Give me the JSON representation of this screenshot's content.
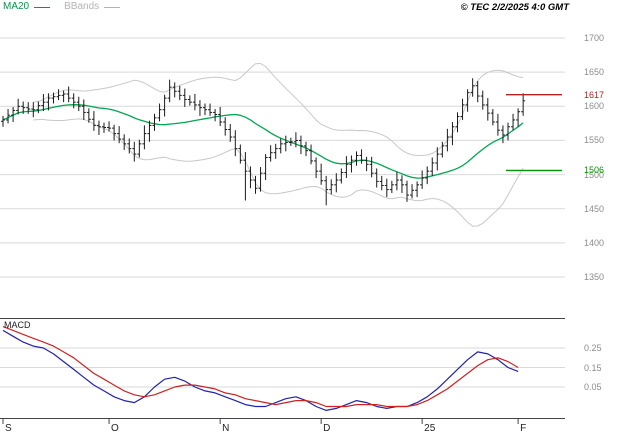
{
  "legend": {
    "ma20": {
      "label": "MA20",
      "color": "#009944"
    },
    "bbands": {
      "label": "BBands",
      "color": "#b3b3b3"
    }
  },
  "header": {
    "copyright": "© TEC 2/2/2025 4:0 GMT"
  },
  "macd_panel_label": "MACD",
  "colors": {
    "grid": "#d9d9d9",
    "separator": "#444444",
    "axis_text": "#8c8c8c",
    "bar": "#1a1a1a",
    "ma20": "#00a651",
    "bbands": "#c8c8c8",
    "macd_line": "#2222aa",
    "signal_line": "#cc2222",
    "resistance": "#b22222",
    "support": "#009900"
  },
  "chart_data": [
    {
      "type": "ohlc",
      "name": "price",
      "title": "",
      "ylabel": "",
      "ylim": [
        1340,
        1710
      ],
      "grid": true,
      "y_ticks": [
        1700,
        1650,
        1600,
        1550,
        1500,
        1450,
        1400,
        1350
      ],
      "x_ticks": [
        {
          "label": "S",
          "bar": 0
        },
        {
          "label": "O",
          "bar": 21
        },
        {
          "label": "N",
          "bar": 43
        },
        {
          "label": "D",
          "bar": 63
        },
        {
          "label": "25",
          "bar": 83
        },
        {
          "label": "F",
          "bar": 102
        }
      ],
      "levels": [
        {
          "kind": "resistance",
          "label": "1617",
          "value": 1617,
          "color": "#b22222"
        },
        {
          "kind": "support",
          "label": "1506",
          "value": 1506,
          "color": "#009900"
        }
      ],
      "overlays": [
        {
          "name": "MA20",
          "type": "sma",
          "period": 20,
          "color": "#00a651"
        },
        {
          "name": "BBands",
          "type": "bollinger",
          "period": 20,
          "stddev": 2,
          "color": "#c8c8c8"
        }
      ],
      "open": [
        1578,
        1580,
        1587,
        1594,
        1600,
        1598,
        1596,
        1595,
        1601,
        1606,
        1612,
        1614,
        1616,
        1618,
        1612,
        1606,
        1600,
        1591,
        1581,
        1572,
        1570,
        1569,
        1568,
        1560,
        1552,
        1545,
        1538,
        1530,
        1545,
        1560,
        1572,
        1583,
        1595,
        1612,
        1628,
        1622,
        1616,
        1610,
        1606,
        1602,
        1598,
        1595,
        1591,
        1588,
        1577,
        1566,
        1555,
        1538,
        1521,
        1505,
        1492,
        1480,
        1502,
        1525,
        1532,
        1538,
        1545,
        1547,
        1548,
        1550,
        1542,
        1535,
        1520,
        1505,
        1491,
        1478,
        1485,
        1492,
        1503,
        1515,
        1521,
        1528,
        1521,
        1515,
        1502,
        1490,
        1484,
        1478,
        1485,
        1492,
        1485,
        1470,
        1477,
        1485,
        1495,
        1505,
        1517,
        1530,
        1542,
        1555,
        1570,
        1585,
        1602,
        1620,
        1630,
        1615,
        1602,
        1590,
        1577,
        1565,
        1558,
        1570,
        1580,
        1592
      ],
      "high": [
        1586,
        1596,
        1599,
        1611,
        1607,
        1606,
        1606,
        1607,
        1618,
        1619,
        1620,
        1625,
        1623,
        1629,
        1619,
        1614,
        1610,
        1597,
        1593,
        1579,
        1576,
        1578,
        1573,
        1571,
        1559,
        1553,
        1548,
        1551,
        1572,
        1579,
        1589,
        1604,
        1617,
        1639,
        1635,
        1630,
        1626,
        1616,
        1618,
        1609,
        1604,
        1604,
        1596,
        1599,
        1584,
        1574,
        1565,
        1544,
        1533,
        1512,
        1498,
        1511,
        1530,
        1543,
        1545,
        1553,
        1557,
        1554,
        1562,
        1557,
        1548,
        1544,
        1525,
        1516,
        1498,
        1493,
        1502,
        1509,
        1527,
        1528,
        1534,
        1537,
        1526,
        1526,
        1509,
        1498,
        1494,
        1491,
        1504,
        1499,
        1491,
        1486,
        1490,
        1506,
        1512,
        1525,
        1540,
        1548,
        1567,
        1577,
        1591,
        1611,
        1625,
        1641,
        1637,
        1623,
        1612,
        1596,
        1589,
        1572,
        1576,
        1589,
        1597,
        1619
      ],
      "low": [
        1570,
        1575,
        1577,
        1588,
        1589,
        1589,
        1584,
        1590,
        1593,
        1594,
        1604,
        1609,
        1606,
        1606,
        1597,
        1593,
        1580,
        1576,
        1564,
        1558,
        1561,
        1563,
        1550,
        1546,
        1536,
        1531,
        1519,
        1525,
        1537,
        1548,
        1564,
        1578,
        1585,
        1606,
        1613,
        1609,
        1599,
        1601,
        1594,
        1586,
        1587,
        1586,
        1578,
        1571,
        1557,
        1548,
        1527,
        1516,
        1462,
        1480,
        1472,
        1475,
        1492,
        1519,
        1523,
        1531,
        1534,
        1542,
        1540,
        1530,
        1527,
        1515,
        1495,
        1485,
        1455,
        1471,
        1474,
        1487,
        1495,
        1503,
        1513,
        1516,
        1505,
        1496,
        1481,
        1477,
        1467,
        1473,
        1477,
        1473,
        1460,
        1465,
        1467,
        1479,
        1486,
        1498,
        1506,
        1525,
        1534,
        1543,
        1562,
        1580,
        1592,
        1614,
        1606,
        1595,
        1579,
        1572,
        1557,
        1546,
        1550,
        1565,
        1570,
        1586
      ],
      "close": [
        1580,
        1587,
        1594,
        1600,
        1598,
        1596,
        1595,
        1601,
        1606,
        1612,
        1614,
        1616,
        1618,
        1612,
        1606,
        1600,
        1591,
        1581,
        1572,
        1570,
        1569,
        1568,
        1560,
        1552,
        1545,
        1538,
        1530,
        1545,
        1560,
        1572,
        1583,
        1595,
        1612,
        1628,
        1622,
        1616,
        1610,
        1606,
        1602,
        1598,
        1595,
        1591,
        1588,
        1577,
        1566,
        1555,
        1538,
        1521,
        1505,
        1492,
        1480,
        1502,
        1525,
        1532,
        1538,
        1545,
        1547,
        1548,
        1550,
        1542,
        1535,
        1520,
        1505,
        1491,
        1478,
        1485,
        1492,
        1503,
        1515,
        1521,
        1528,
        1521,
        1515,
        1502,
        1490,
        1484,
        1478,
        1485,
        1492,
        1485,
        1470,
        1477,
        1485,
        1495,
        1505,
        1517,
        1530,
        1542,
        1555,
        1570,
        1585,
        1602,
        1620,
        1630,
        1615,
        1602,
        1590,
        1577,
        1565,
        1558,
        1570,
        1580,
        1592,
        1608
      ]
    },
    {
      "type": "line",
      "name": "MACD",
      "grid": true,
      "y_ticks": [
        0.25,
        0.15,
        0.05
      ],
      "y_tick_labels": [
        "0.25",
        "0.15",
        "0.05"
      ],
      "x_step": 2,
      "series": [
        {
          "name": "MACD",
          "color": "#2222aa",
          "values": [
            0.34,
            0.31,
            0.28,
            0.26,
            0.25,
            0.22,
            0.18,
            0.14,
            0.1,
            0.06,
            0.03,
            0.0,
            -0.02,
            -0.03,
            0.0,
            0.05,
            0.09,
            0.1,
            0.08,
            0.05,
            0.03,
            0.02,
            0.0,
            -0.02,
            -0.04,
            -0.05,
            -0.05,
            -0.03,
            -0.01,
            0.0,
            -0.02,
            -0.05,
            -0.07,
            -0.06,
            -0.04,
            -0.02,
            -0.03,
            -0.05,
            -0.06,
            -0.05,
            -0.05,
            -0.03,
            0.0,
            0.04,
            0.09,
            0.14,
            0.19,
            0.23,
            0.22,
            0.19,
            0.15,
            0.13
          ]
        },
        {
          "name": "Signal",
          "color": "#cc2222",
          "values": [
            0.36,
            0.34,
            0.32,
            0.3,
            0.28,
            0.26,
            0.23,
            0.2,
            0.16,
            0.12,
            0.09,
            0.06,
            0.03,
            0.01,
            0.0,
            0.01,
            0.03,
            0.05,
            0.06,
            0.06,
            0.05,
            0.04,
            0.02,
            0.01,
            -0.01,
            -0.02,
            -0.03,
            -0.04,
            -0.03,
            -0.02,
            -0.02,
            -0.03,
            -0.05,
            -0.05,
            -0.05,
            -0.04,
            -0.04,
            -0.04,
            -0.05,
            -0.05,
            -0.05,
            -0.04,
            -0.02,
            0.01,
            0.04,
            0.08,
            0.12,
            0.16,
            0.19,
            0.2,
            0.18,
            0.15
          ]
        }
      ]
    }
  ]
}
